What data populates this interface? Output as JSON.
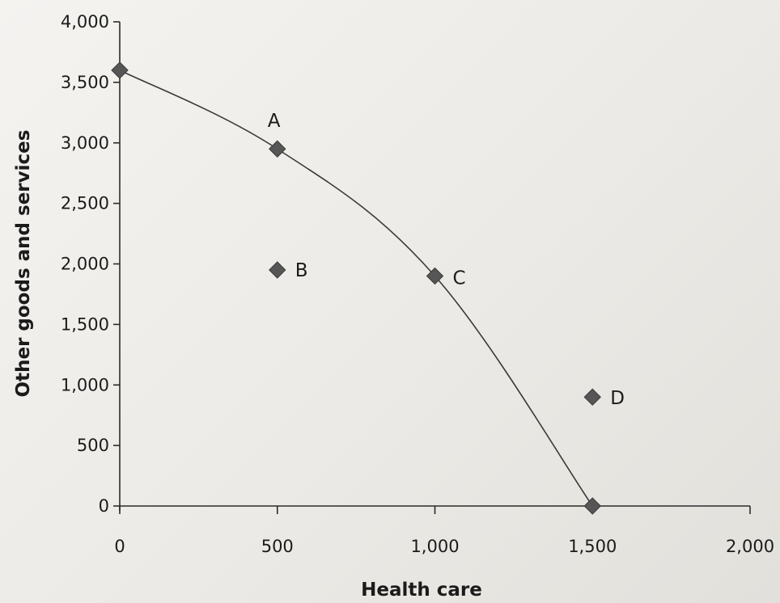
{
  "chart_data": {
    "type": "line",
    "title": "",
    "xlabel": "Health care",
    "ylabel": "Other goods and services",
    "xlim": [
      0,
      2000
    ],
    "ylim": [
      0,
      4000
    ],
    "x_ticks": [
      0,
      500,
      1000,
      1500,
      2000
    ],
    "x_tick_labels": [
      "0",
      "500",
      "1,000",
      "1,500",
      "2,000"
    ],
    "y_ticks": [
      0,
      500,
      1000,
      1500,
      2000,
      2500,
      3000,
      3500,
      4000
    ],
    "y_tick_labels": [
      "0",
      "500",
      "1,000",
      "1,500",
      "2,000",
      "2,500",
      "3,000",
      "3,500",
      "4,000"
    ],
    "grid": false,
    "series": [
      {
        "x": [
          0,
          500,
          1000,
          1500
        ],
        "y": [
          3600,
          2950,
          1900,
          0
        ]
      }
    ],
    "points": [
      {
        "label": "",
        "x": 0,
        "y": 3600
      },
      {
        "label": "A",
        "x": 500,
        "y": 2950
      },
      {
        "label": "B",
        "x": 500,
        "y": 1950
      },
      {
        "label": "C",
        "x": 1000,
        "y": 1900
      },
      {
        "label": "D",
        "x": 1500,
        "y": 900
      },
      {
        "label": "",
        "x": 1500,
        "y": 0
      }
    ]
  }
}
